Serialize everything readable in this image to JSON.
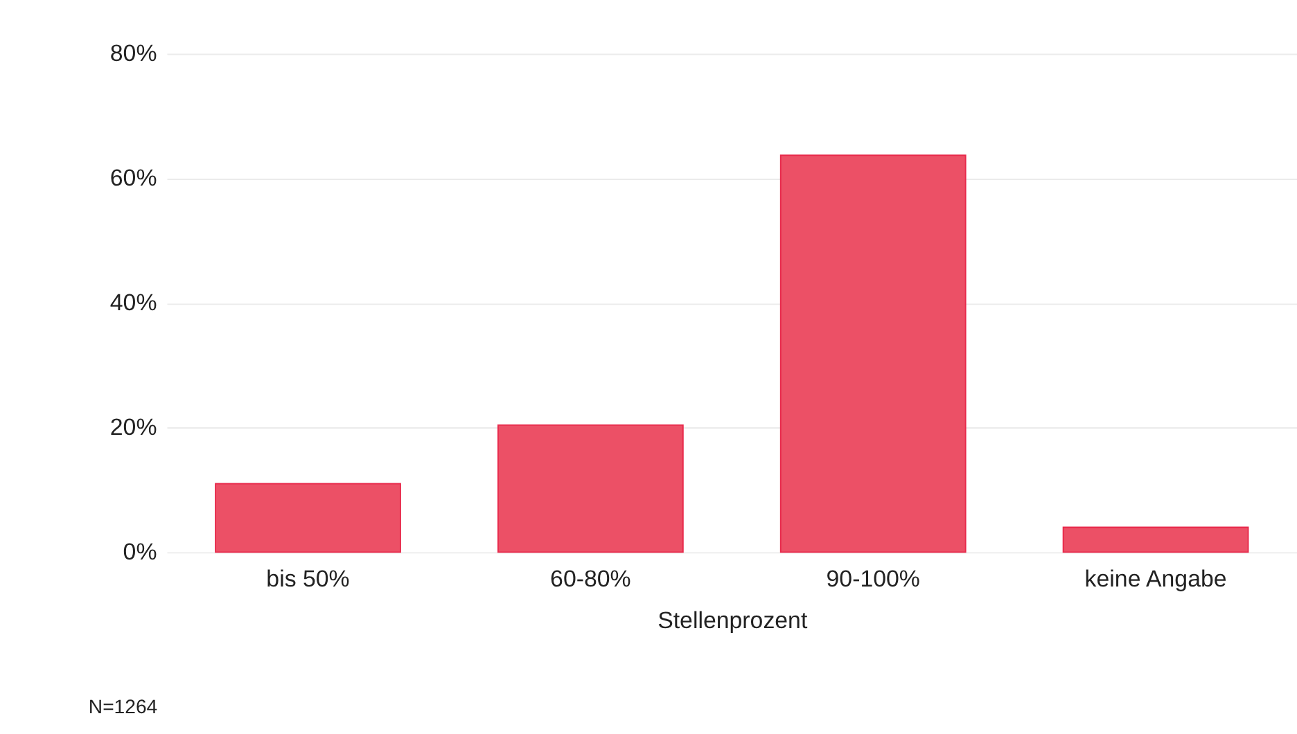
{
  "chart_data": {
    "type": "bar",
    "xlabel": "Stellenprozent",
    "categories": [
      "bis 50%",
      "60-80%",
      "90-100%",
      "keine Angabe"
    ],
    "values": [
      11.0,
      20.4,
      63.7,
      4.0
    ],
    "color": "#ec5066",
    "ylim": [
      0,
      80
    ],
    "yticks": [
      {
        "value": 0,
        "label": "0%"
      },
      {
        "value": 20,
        "label": "20%"
      },
      {
        "value": 40,
        "label": "40%"
      },
      {
        "value": 60,
        "label": "60%"
      },
      {
        "value": 80,
        "label": "80%"
      }
    ],
    "grid": "y",
    "legend": false,
    "annotations": [
      "N=1264"
    ]
  }
}
